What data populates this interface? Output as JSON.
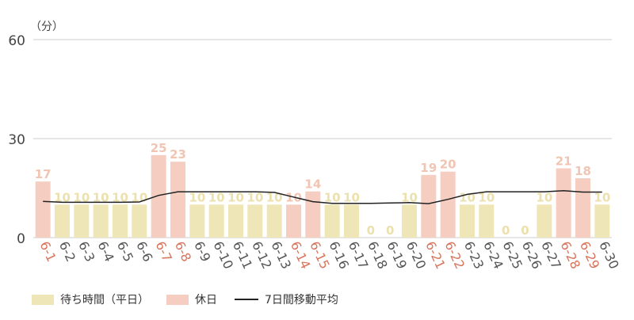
{
  "chart_data": {
    "type": "bar",
    "unit_label": "（分）",
    "ylim": [
      0,
      60
    ],
    "yticks": [
      0,
      30,
      60
    ],
    "categories": [
      "6-1",
      "6-2",
      "6-3",
      "6-4",
      "6-5",
      "6-6",
      "6-7",
      "6-8",
      "6-9",
      "6-10",
      "6-11",
      "6-12",
      "6-13",
      "6-14",
      "6-15",
      "6-16",
      "6-17",
      "6-18",
      "6-19",
      "6-20",
      "6-21",
      "6-22",
      "6-23",
      "6-24",
      "6-25",
      "6-26",
      "6-27",
      "6-28",
      "6-29",
      "6-30"
    ],
    "values": [
      17,
      10,
      10,
      10,
      10,
      10,
      25,
      23,
      10,
      10,
      10,
      10,
      10,
      10,
      14,
      10,
      10,
      0,
      0,
      10,
      19,
      20,
      10,
      10,
      0,
      0,
      10,
      21,
      18,
      10
    ],
    "holiday": [
      true,
      false,
      false,
      false,
      false,
      false,
      true,
      true,
      false,
      false,
      false,
      false,
      false,
      true,
      true,
      false,
      false,
      false,
      false,
      false,
      true,
      true,
      false,
      false,
      false,
      false,
      false,
      true,
      true,
      false
    ],
    "moving_average": [
      11.0,
      10.7,
      10.7,
      10.7,
      10.7,
      10.8,
      12.8,
      13.9,
      13.9,
      13.9,
      13.9,
      13.9,
      13.7,
      12.3,
      10.9,
      10.4,
      10.4,
      10.4,
      10.5,
      10.6,
      10.3,
      11.6,
      13.1,
      13.9,
      13.9,
      13.9,
      13.9,
      14.2,
      13.8,
      13.8
    ],
    "legend": [
      "待ち時間（平日）",
      "休日",
      "7日間移動平均"
    ],
    "colors": {
      "weekday_bar": "#efe6b7",
      "holiday_bar": "#f5cdc1",
      "weekday_label": "#ece0ad",
      "holiday_label": "#f0c5b4",
      "holiday_tick": "#d9735a",
      "weekday_tick": "#555555",
      "average_line": "#222222",
      "grid": "#cccccc"
    },
    "grid": true
  }
}
